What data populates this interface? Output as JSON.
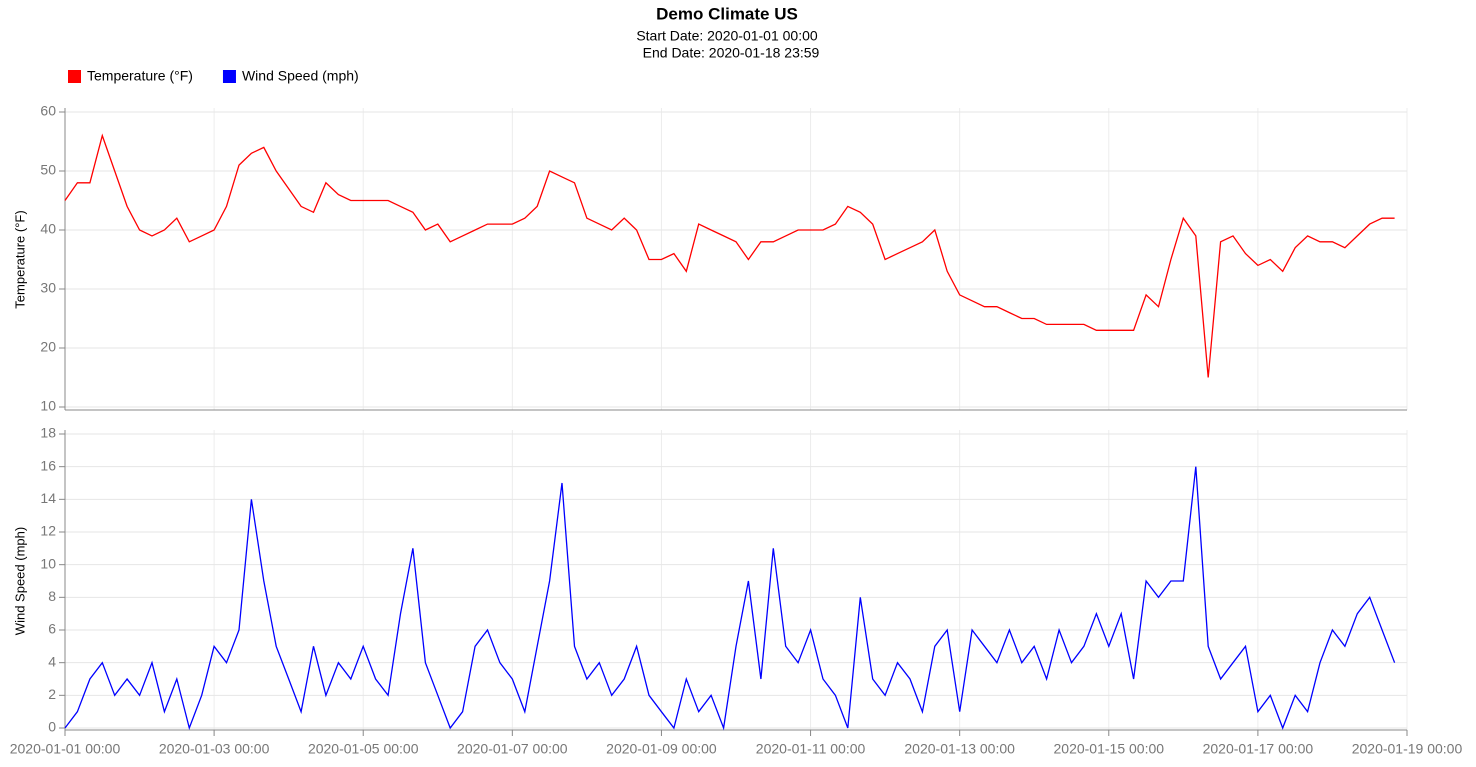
{
  "title": "Demo Climate US",
  "subtitle": [
    "Start Date: 2020-01-01 00:00",
    "End Date: 2020-01-18 23:59"
  ],
  "chart_data": [
    {
      "type": "line",
      "ylabel": "Temperature (°F)",
      "ylim": [
        10,
        60
      ],
      "yticks": [
        10,
        20,
        30,
        40,
        50,
        60
      ],
      "grid": true,
      "xlim": [
        "2020-01-01 00:00",
        "2020-01-19 00:00"
      ],
      "x": [
        "2020-01-01 00:00",
        "2020-01-01 04:00",
        "2020-01-01 08:00",
        "2020-01-01 12:00",
        "2020-01-01 16:00",
        "2020-01-01 20:00",
        "2020-01-02 00:00",
        "2020-01-02 04:00",
        "2020-01-02 08:00",
        "2020-01-02 12:00",
        "2020-01-02 16:00",
        "2020-01-02 20:00",
        "2020-01-03 00:00",
        "2020-01-03 04:00",
        "2020-01-03 08:00",
        "2020-01-03 12:00",
        "2020-01-03 16:00",
        "2020-01-03 20:00",
        "2020-01-04 00:00",
        "2020-01-04 04:00",
        "2020-01-04 08:00",
        "2020-01-04 12:00",
        "2020-01-04 16:00",
        "2020-01-04 20:00",
        "2020-01-05 00:00",
        "2020-01-05 04:00",
        "2020-01-05 08:00",
        "2020-01-05 12:00",
        "2020-01-05 16:00",
        "2020-01-05 20:00",
        "2020-01-06 00:00",
        "2020-01-06 04:00",
        "2020-01-06 08:00",
        "2020-01-06 12:00",
        "2020-01-06 16:00",
        "2020-01-06 20:00",
        "2020-01-07 00:00",
        "2020-01-07 04:00",
        "2020-01-07 08:00",
        "2020-01-07 12:00",
        "2020-01-07 16:00",
        "2020-01-07 20:00",
        "2020-01-08 00:00",
        "2020-01-08 04:00",
        "2020-01-08 08:00",
        "2020-01-08 12:00",
        "2020-01-08 16:00",
        "2020-01-08 20:00",
        "2020-01-09 00:00",
        "2020-01-09 04:00",
        "2020-01-09 08:00",
        "2020-01-09 12:00",
        "2020-01-09 16:00",
        "2020-01-09 20:00",
        "2020-01-10 00:00",
        "2020-01-10 04:00",
        "2020-01-10 08:00",
        "2020-01-10 12:00",
        "2020-01-10 16:00",
        "2020-01-10 20:00",
        "2020-01-11 00:00",
        "2020-01-11 04:00",
        "2020-01-11 08:00",
        "2020-01-11 12:00",
        "2020-01-11 16:00",
        "2020-01-11 20:00",
        "2020-01-12 00:00",
        "2020-01-12 04:00",
        "2020-01-12 08:00",
        "2020-01-12 12:00",
        "2020-01-12 16:00",
        "2020-01-12 20:00",
        "2020-01-13 00:00",
        "2020-01-13 04:00",
        "2020-01-13 08:00",
        "2020-01-13 12:00",
        "2020-01-13 16:00",
        "2020-01-13 20:00",
        "2020-01-14 00:00",
        "2020-01-14 04:00",
        "2020-01-14 08:00",
        "2020-01-14 12:00",
        "2020-01-14 16:00",
        "2020-01-14 20:00",
        "2020-01-15 00:00",
        "2020-01-15 04:00",
        "2020-01-15 08:00",
        "2020-01-15 12:00",
        "2020-01-15 16:00",
        "2020-01-15 20:00",
        "2020-01-16 00:00",
        "2020-01-16 04:00",
        "2020-01-16 08:00",
        "2020-01-16 12:00",
        "2020-01-16 16:00",
        "2020-01-16 20:00",
        "2020-01-17 00:00",
        "2020-01-17 04:00",
        "2020-01-17 08:00",
        "2020-01-17 12:00",
        "2020-01-17 16:00",
        "2020-01-17 20:00",
        "2020-01-18 00:00",
        "2020-01-18 04:00",
        "2020-01-18 08:00",
        "2020-01-18 12:00",
        "2020-01-18 16:00",
        "2020-01-18 20:00"
      ],
      "series": [
        {
          "name": "Temperature (°F)",
          "color": "#ff0000",
          "values": [
            45,
            48,
            48,
            56,
            50,
            44,
            40,
            39,
            40,
            42,
            38,
            39,
            40,
            44,
            51,
            53,
            54,
            50,
            47,
            44,
            43,
            48,
            46,
            45,
            45,
            45,
            45,
            44,
            43,
            40,
            41,
            38,
            39,
            40,
            41,
            41,
            41,
            42,
            44,
            50,
            49,
            48,
            42,
            41,
            40,
            42,
            40,
            35,
            35,
            36,
            33,
            41,
            40,
            39,
            38,
            35,
            38,
            38,
            39,
            40,
            40,
            40,
            41,
            44,
            43,
            41,
            35,
            36,
            37,
            38,
            40,
            33,
            29,
            28,
            27,
            27,
            26,
            25,
            25,
            24,
            24,
            24,
            24,
            23,
            23,
            23,
            23,
            29,
            27,
            35,
            42,
            39,
            15,
            38,
            39,
            36,
            34,
            35,
            33,
            37,
            39,
            38,
            38,
            37,
            39,
            41,
            42,
            42
          ]
        }
      ]
    },
    {
      "type": "line",
      "ylabel": "Wind Speed (mph)",
      "ylim": [
        0,
        18
      ],
      "yticks": [
        0,
        2,
        4,
        6,
        8,
        10,
        12,
        14,
        16,
        18
      ],
      "grid": true,
      "xlim": [
        "2020-01-01 00:00",
        "2020-01-19 00:00"
      ],
      "xticks": [
        "2020-01-01 00:00",
        "2020-01-03 00:00",
        "2020-01-05 00:00",
        "2020-01-07 00:00",
        "2020-01-09 00:00",
        "2020-01-11 00:00",
        "2020-01-13 00:00",
        "2020-01-15 00:00",
        "2020-01-17 00:00",
        "2020-01-19 00:00"
      ],
      "x": [
        "2020-01-01 00:00",
        "2020-01-01 04:00",
        "2020-01-01 08:00",
        "2020-01-01 12:00",
        "2020-01-01 16:00",
        "2020-01-01 20:00",
        "2020-01-02 00:00",
        "2020-01-02 04:00",
        "2020-01-02 08:00",
        "2020-01-02 12:00",
        "2020-01-02 16:00",
        "2020-01-02 20:00",
        "2020-01-03 00:00",
        "2020-01-03 04:00",
        "2020-01-03 08:00",
        "2020-01-03 12:00",
        "2020-01-03 16:00",
        "2020-01-03 20:00",
        "2020-01-04 00:00",
        "2020-01-04 04:00",
        "2020-01-04 08:00",
        "2020-01-04 12:00",
        "2020-01-04 16:00",
        "2020-01-04 20:00",
        "2020-01-05 00:00",
        "2020-01-05 04:00",
        "2020-01-05 08:00",
        "2020-01-05 12:00",
        "2020-01-05 16:00",
        "2020-01-05 20:00",
        "2020-01-06 00:00",
        "2020-01-06 04:00",
        "2020-01-06 08:00",
        "2020-01-06 12:00",
        "2020-01-06 16:00",
        "2020-01-06 20:00",
        "2020-01-07 00:00",
        "2020-01-07 04:00",
        "2020-01-07 08:00",
        "2020-01-07 12:00",
        "2020-01-07 16:00",
        "2020-01-07 20:00",
        "2020-01-08 00:00",
        "2020-01-08 04:00",
        "2020-01-08 08:00",
        "2020-01-08 12:00",
        "2020-01-08 16:00",
        "2020-01-08 20:00",
        "2020-01-09 00:00",
        "2020-01-09 04:00",
        "2020-01-09 08:00",
        "2020-01-09 12:00",
        "2020-01-09 16:00",
        "2020-01-09 20:00",
        "2020-01-10 00:00",
        "2020-01-10 04:00",
        "2020-01-10 08:00",
        "2020-01-10 12:00",
        "2020-01-10 16:00",
        "2020-01-10 20:00",
        "2020-01-11 00:00",
        "2020-01-11 04:00",
        "2020-01-11 08:00",
        "2020-01-11 12:00",
        "2020-01-11 16:00",
        "2020-01-11 20:00",
        "2020-01-12 00:00",
        "2020-01-12 04:00",
        "2020-01-12 08:00",
        "2020-01-12 12:00",
        "2020-01-12 16:00",
        "2020-01-12 20:00",
        "2020-01-13 00:00",
        "2020-01-13 04:00",
        "2020-01-13 08:00",
        "2020-01-13 12:00",
        "2020-01-13 16:00",
        "2020-01-13 20:00",
        "2020-01-14 00:00",
        "2020-01-14 04:00",
        "2020-01-14 08:00",
        "2020-01-14 12:00",
        "2020-01-14 16:00",
        "2020-01-14 20:00",
        "2020-01-15 00:00",
        "2020-01-15 04:00",
        "2020-01-15 08:00",
        "2020-01-15 12:00",
        "2020-01-15 16:00",
        "2020-01-15 20:00",
        "2020-01-16 00:00",
        "2020-01-16 04:00",
        "2020-01-16 08:00",
        "2020-01-16 12:00",
        "2020-01-16 16:00",
        "2020-01-16 20:00",
        "2020-01-17 00:00",
        "2020-01-17 04:00",
        "2020-01-17 08:00",
        "2020-01-17 12:00",
        "2020-01-17 16:00",
        "2020-01-17 20:00",
        "2020-01-18 00:00",
        "2020-01-18 04:00",
        "2020-01-18 08:00",
        "2020-01-18 12:00",
        "2020-01-18 16:00",
        "2020-01-18 20:00"
      ],
      "series": [
        {
          "name": "Wind Speed (mph)",
          "color": "#0000ff",
          "values": [
            0,
            1,
            3,
            4,
            2,
            3,
            2,
            4,
            1,
            3,
            0,
            2,
            5,
            4,
            6,
            14,
            9,
            5,
            3,
            1,
            5,
            2,
            4,
            3,
            5,
            3,
            2,
            7,
            11,
            4,
            2,
            0,
            1,
            5,
            6,
            4,
            3,
            1,
            5,
            9,
            15,
            5,
            3,
            4,
            2,
            3,
            5,
            2,
            1,
            0,
            3,
            1,
            2,
            0,
            5,
            9,
            3,
            11,
            5,
            4,
            6,
            3,
            2,
            0,
            8,
            3,
            2,
            4,
            3,
            1,
            5,
            6,
            1,
            6,
            5,
            4,
            6,
            4,
            5,
            3,
            6,
            4,
            5,
            7,
            5,
            7,
            3,
            9,
            8,
            9,
            9,
            16,
            5,
            3,
            4,
            5,
            1,
            2,
            0,
            2,
            1,
            4,
            6,
            5,
            7,
            8,
            6,
            4
          ]
        }
      ]
    }
  ]
}
